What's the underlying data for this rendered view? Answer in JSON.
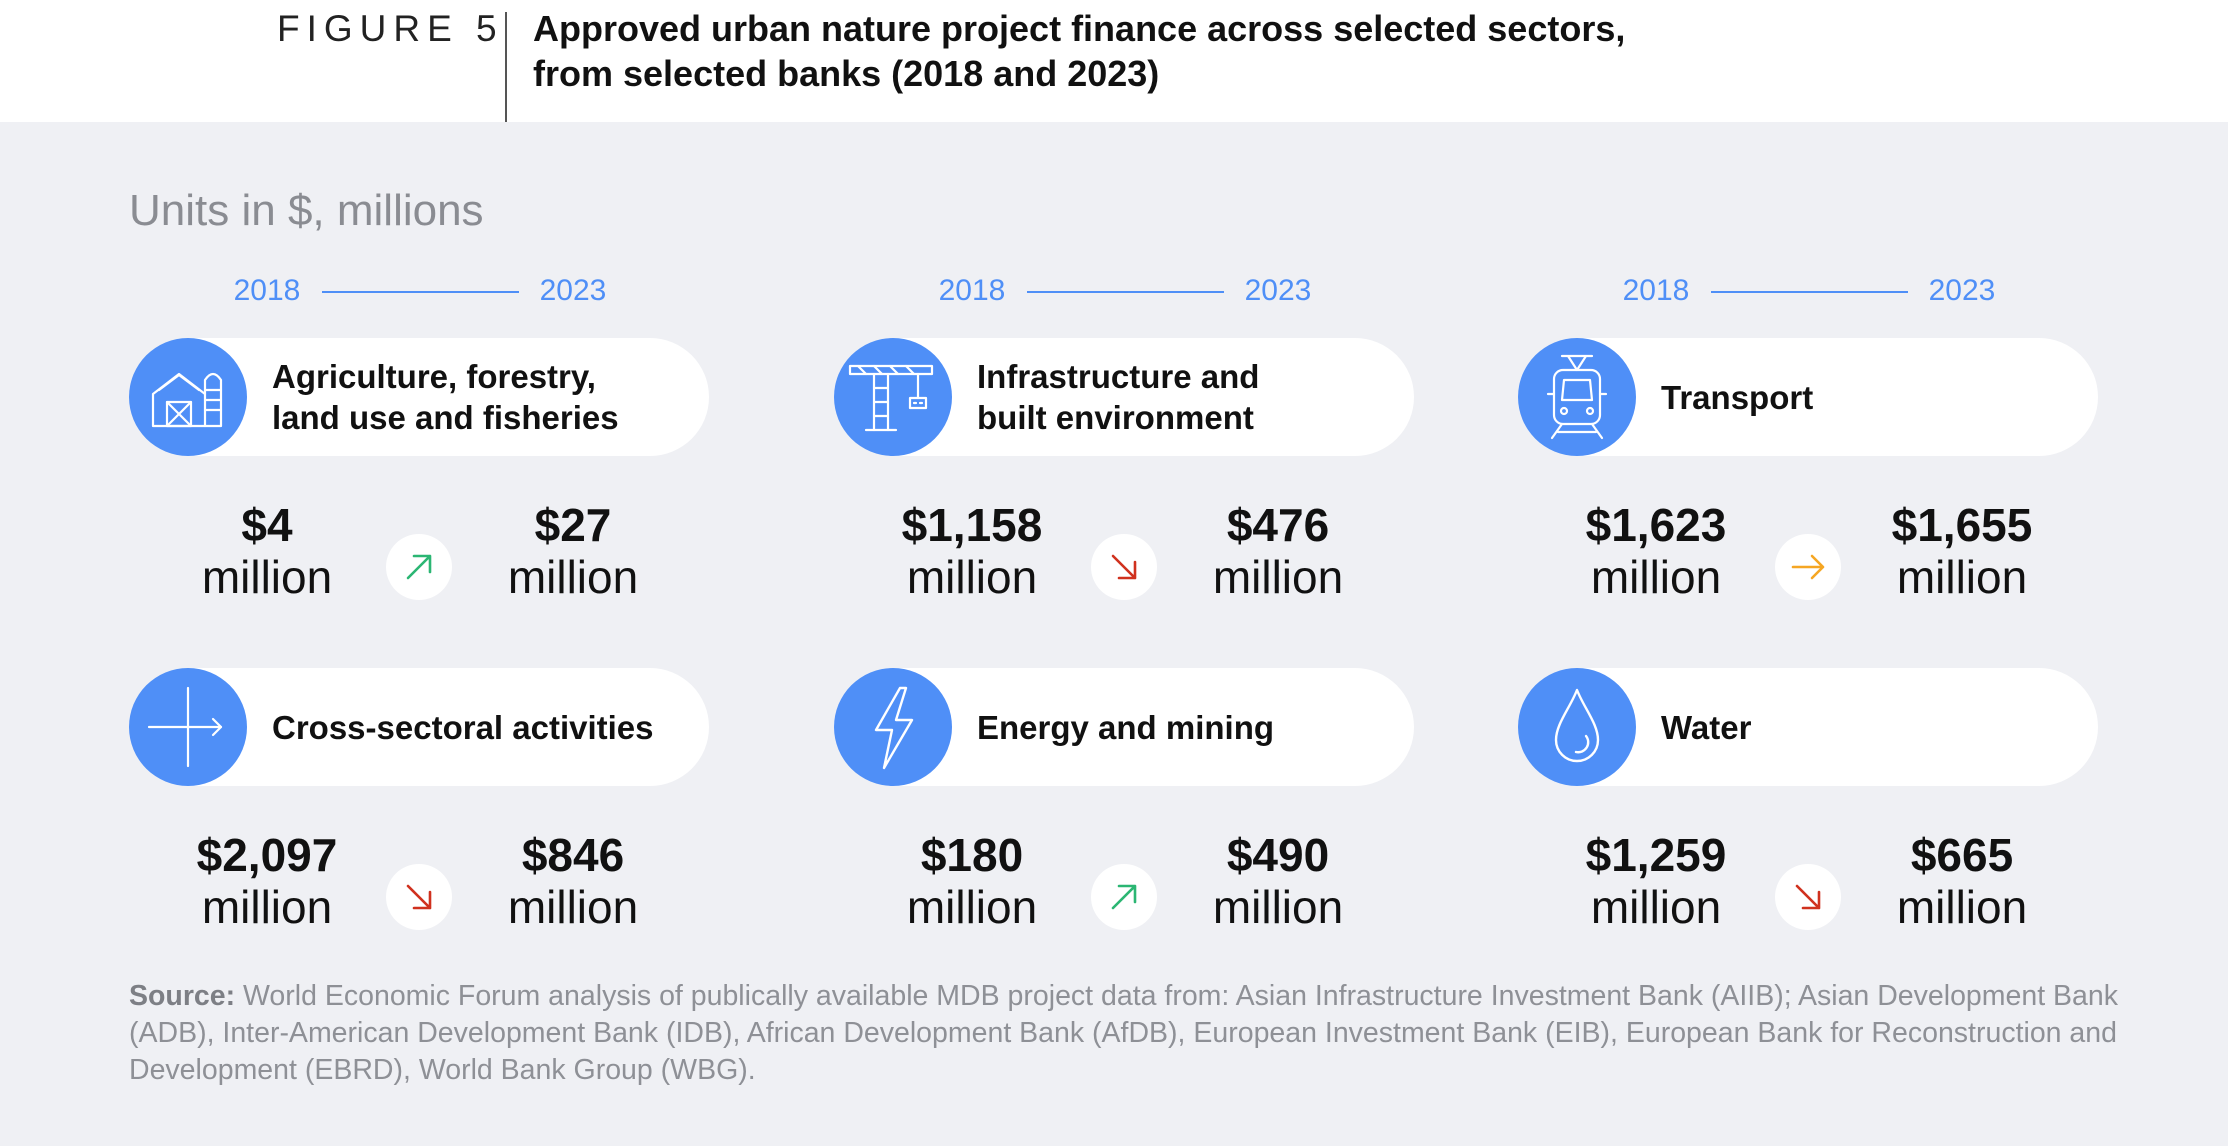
{
  "figure_label": "FIGURE 5",
  "title_line1": "Approved urban nature project finance across selected sectors,",
  "title_line2": "from selected banks (2018 and 2023)",
  "units_note": "Units in $, millions",
  "years": {
    "start": "2018",
    "end": "2023"
  },
  "unit_word": "million",
  "trend_colors": {
    "up": "#2bb673",
    "down": "#d0311e",
    "flat": "#f5a623"
  },
  "source": {
    "label": "Source:",
    "text": " World Economic Forum analysis of publically available MDB project data from: Asian Infrastructure Investment Bank (AIIB); Asian Development Bank (ADB), Inter-American Development Bank (IDB), African Development Bank (AfDB), European Investment Bank (EIB), European Bank for Reconstruction and Development (EBRD), World Bank Group (WBG)."
  },
  "chart_data": {
    "type": "table",
    "columns": [
      "2018",
      "2023"
    ],
    "unit": "$ millions",
    "sectors": [
      {
        "name_line1": "Agriculture, forestry,",
        "name_line2": "land use and fisheries",
        "icon": "barn-silo-icon",
        "value_2018": 4,
        "value_2023": 27,
        "label_2018": "$4",
        "label_2023": "$27",
        "trend": "up"
      },
      {
        "name_line1": "Infrastructure and",
        "name_line2": "built environment",
        "icon": "crane-icon",
        "value_2018": 1158,
        "value_2023": 476,
        "label_2018": "$1,158",
        "label_2023": "$476",
        "trend": "down"
      },
      {
        "name_line1": "Transport",
        "name_line2": "",
        "icon": "tram-icon",
        "value_2018": 1623,
        "value_2023": 1655,
        "label_2018": "$1,623",
        "label_2023": "$1,655",
        "trend": "flat"
      },
      {
        "name_line1": "Cross-sectoral activities",
        "name_line2": "",
        "icon": "crossroad-arrow-icon",
        "value_2018": 2097,
        "value_2023": 846,
        "label_2018": "$2,097",
        "label_2023": "$846",
        "trend": "down"
      },
      {
        "name_line1": "Energy and mining",
        "name_line2": "",
        "icon": "lightning-bolt-icon",
        "value_2018": 180,
        "value_2023": 490,
        "label_2018": "$180",
        "label_2023": "$490",
        "trend": "up"
      },
      {
        "name_line1": "Water",
        "name_line2": "",
        "icon": "water-drop-icon",
        "value_2018": 1259,
        "value_2023": 665,
        "label_2018": "$1,259",
        "label_2023": "$665",
        "trend": "down"
      }
    ]
  }
}
